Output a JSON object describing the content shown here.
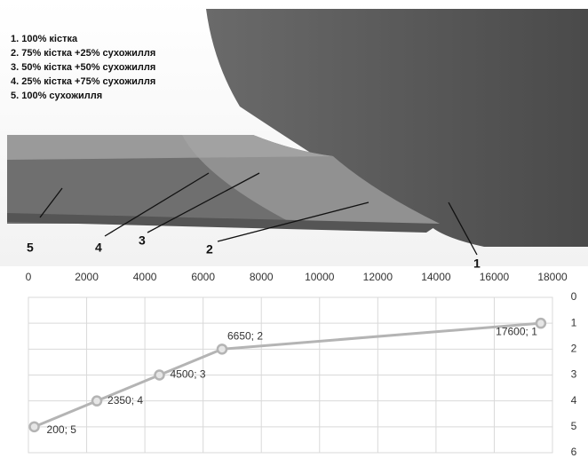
{
  "illustration": {
    "legend": [
      "1. 100% кістка",
      "2. 75% кістка +25% сухожилля",
      "3. 50% кістка +50% сухожилля",
      "4. 25% кістка +75% сухожилля",
      "5. 100% сухожилля"
    ],
    "labels": [
      "5",
      "4",
      "3",
      "2",
      "1"
    ]
  },
  "chart_data": {
    "type": "line",
    "x": [
      200,
      2350,
      4500,
      6650,
      17600
    ],
    "series": [
      {
        "name": "",
        "color": "#b4b4b4",
        "values": [
          5,
          4,
          3,
          2,
          1
        ],
        "value_labels": [
          "200; 5",
          "2350; 4",
          "4500; 3",
          "6650; 2",
          "17600; 1"
        ]
      }
    ],
    "xlim": [
      0,
      18000
    ],
    "xticks": [
      0,
      2000,
      4000,
      6000,
      8000,
      10000,
      12000,
      14000,
      16000,
      18000
    ],
    "ylim": [
      0,
      6
    ],
    "yticks": [
      0,
      1,
      2,
      3,
      4,
      5,
      6
    ],
    "y_inverted": true,
    "x_axis_position": "top",
    "y_axis_position": "right",
    "grid": true
  }
}
